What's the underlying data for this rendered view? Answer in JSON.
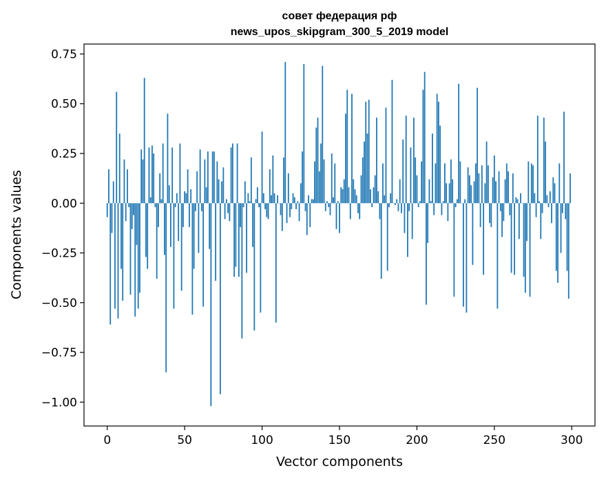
{
  "chart_data": {
    "type": "bar",
    "title_line1": "совет федерация рф",
    "title_line2": "news_upos_skipgram_300_5_2019 model",
    "xlabel": "Vector components",
    "ylabel": "Components values",
    "xlim": [
      -15,
      315
    ],
    "ylim": [
      -1.12,
      0.8
    ],
    "xticks": [
      0,
      50,
      100,
      150,
      200,
      250,
      300
    ],
    "xtick_labels": [
      "0",
      "50",
      "100",
      "150",
      "200",
      "250",
      "300"
    ],
    "yticks": [
      0.75,
      0.5,
      0.25,
      0.0,
      -0.25,
      -0.5,
      -0.75,
      -1.0
    ],
    "ytick_labels": [
      "0.75",
      "0.50",
      "0.25",
      "0.00",
      "−0.25",
      "−0.50",
      "−0.75",
      "−1.00"
    ],
    "bar_color": "#1f77b4",
    "values": [
      -0.07,
      0.17,
      -0.61,
      -0.15,
      0.11,
      -0.53,
      0.56,
      -0.58,
      0.35,
      -0.33,
      -0.49,
      0.22,
      -0.09,
      0.17,
      -0.02,
      -0.46,
      -0.13,
      -0.06,
      -0.57,
      -0.21,
      -0.53,
      -0.45,
      0.27,
      0.22,
      0.63,
      -0.27,
      -0.33,
      0.28,
      0.03,
      0.29,
      0.25,
      -0.02,
      -0.38,
      -0.12,
      0.15,
      0.02,
      0.3,
      -0.26,
      -0.85,
      0.45,
      0.09,
      -0.22,
      0.28,
      -0.53,
      -0.02,
      0.05,
      -0.19,
      0.3,
      -0.44,
      -0.12,
      0.06,
      0.05,
      0.17,
      -0.12,
      0.07,
      -0.56,
      -0.33,
      -0.04,
      0.16,
      -0.25,
      0.27,
      -0.04,
      -0.52,
      0.22,
      0.08,
      0.26,
      -0.23,
      -1.02,
      0.26,
      0.26,
      -0.39,
      0.21,
      0.12,
      -0.96,
      0.11,
      0.18,
      -0.08,
      0.02,
      -0.05,
      -0.09,
      0.28,
      0.3,
      -0.37,
      -0.32,
      0.3,
      -0.37,
      -0.12,
      -0.68,
      -0.02,
      0.11,
      -0.35,
      0.05,
      0.01,
      0.23,
      -0.22,
      -0.64,
      0.02,
      0.08,
      -0.02,
      -0.55,
      0.36,
      0.05,
      -0.03,
      -0.07,
      -0.08,
      0.17,
      0.04,
      0.24,
      0.05,
      -0.6,
      0.04,
      0.0,
      -0.06,
      -0.14,
      0.23,
      0.71,
      -0.1,
      0.15,
      -0.07,
      -0.03,
      0.05,
      0.03,
      -0.03,
      0.01,
      -0.09,
      0.1,
      0.26,
      0.7,
      -0.04,
      -0.16,
      0.04,
      -0.12,
      0.02,
      0.02,
      0.21,
      0.38,
      0.43,
      0.16,
      0.3,
      0.69,
      0.22,
      -0.04,
      0.01,
      -0.02,
      -0.06,
      0.25,
      0.03,
      0.2,
      -0.13,
      0.01,
      -0.15,
      0.08,
      0.07,
      0.12,
      0.45,
      0.57,
      0.08,
      -0.08,
      0.55,
      0.12,
      0.07,
      0.04,
      -0.05,
      -0.08,
      0.14,
      0.23,
      0.31,
      0.51,
      0.35,
      0.52,
      0.07,
      -0.02,
      0.08,
      0.14,
      0.43,
      0.06,
      -0.08,
      -0.38,
      0.2,
      0.04,
      0.48,
      -0.34,
      -0.02,
      0.05,
      0.62,
      0.0,
      -0.01,
      0.02,
      -0.04,
      0.12,
      -0.05,
      0.32,
      -0.15,
      0.44,
      -0.27,
      -0.04,
      0.28,
      -0.18,
      0.43,
      0.23,
      0.14,
      -0.02,
      0.01,
      0.21,
      0.57,
      0.66,
      -0.51,
      -0.2,
      0.12,
      0.01,
      0.35,
      -0.06,
      0.2,
      0.55,
      0.51,
      0.39,
      -0.06,
      0.01,
      0.2,
      0.1,
      -0.09,
      0.1,
      0.22,
      0.12,
      -0.47,
      -0.02,
      0.02,
      0.6,
      0.21,
      0.0,
      -0.52,
      0.02,
      -0.55,
      0.18,
      0.14,
      0.09,
      -0.31,
      0.11,
      0.2,
      0.58,
      0.15,
      -0.12,
      0.19,
      -0.36,
      0.1,
      0.31,
      0.19,
      -0.1,
      -0.12,
      0.13,
      0.24,
      0.11,
      -0.53,
      0.16,
      -0.04,
      -0.17,
      -0.09,
      0.12,
      0.2,
      0.16,
      -0.06,
      -0.35,
      0.15,
      -0.36,
      0.03,
      0.02,
      -0.18,
      0.05,
      0.0,
      -0.37,
      -0.45,
      -0.19,
      0.21,
      -0.47,
      0.2,
      0.19,
      0.05,
      -0.07,
      0.44,
      0.01,
      -0.18,
      -0.05,
      0.43,
      0.31,
      0.04,
      -0.02,
      0.06,
      -0.1,
      0.13,
      0.1,
      -0.34,
      -0.4,
      0.2,
      -0.25,
      -0.05,
      0.46,
      -0.08,
      -0.34,
      -0.48,
      0.15
    ]
  }
}
